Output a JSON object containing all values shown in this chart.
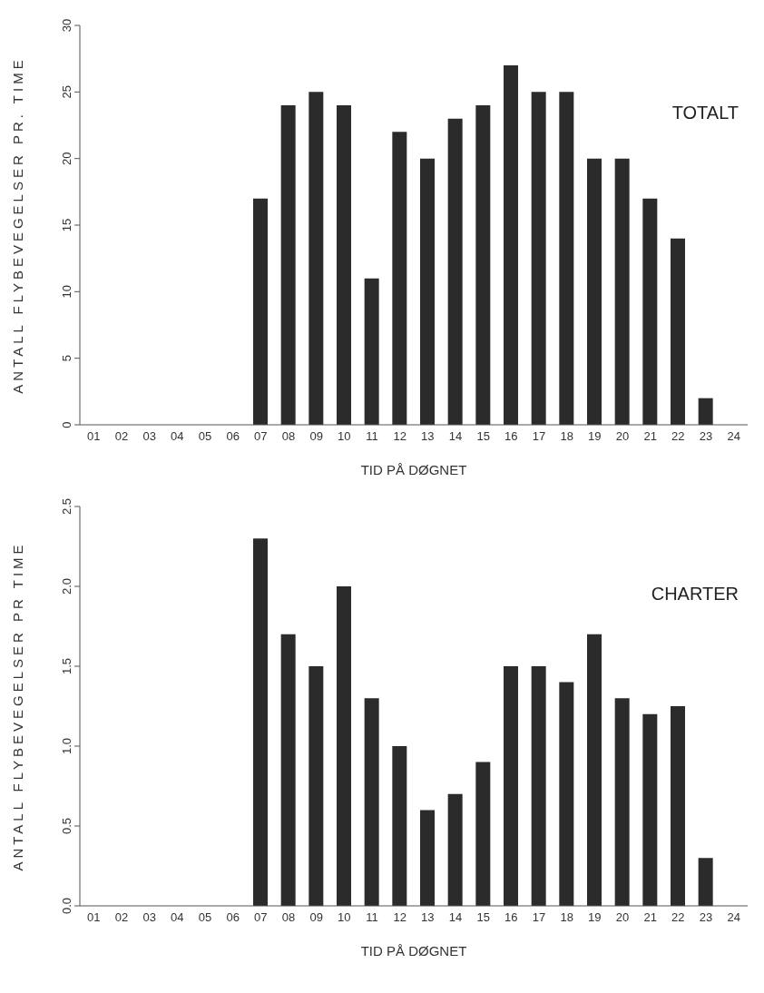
{
  "chart_data": [
    {
      "type": "bar",
      "title": "TOTALT",
      "xlabel": "TID PÅ DØGNET",
      "ylabel": "ANTALL FLYBEVEGELSER PR. TIME",
      "categories": [
        "01",
        "02",
        "03",
        "04",
        "05",
        "06",
        "07",
        "08",
        "09",
        "10",
        "11",
        "12",
        "13",
        "14",
        "15",
        "16",
        "17",
        "18",
        "19",
        "20",
        "21",
        "22",
        "23",
        "24"
      ],
      "values": [
        0,
        0,
        0,
        0,
        0,
        0,
        17,
        24,
        25,
        24,
        11,
        22,
        20,
        23,
        24,
        27,
        25,
        25,
        20,
        20,
        17,
        14,
        2,
        0
      ],
      "color": "#2b2b2b",
      "ylim": [
        0,
        30
      ],
      "yticks": [
        0,
        5,
        10,
        15,
        20,
        25,
        30
      ],
      "grid": false
    },
    {
      "type": "bar",
      "title": "CHARTER",
      "xlabel": "TID PÅ DØGNET",
      "ylabel": "ANTALL FLYBEVEGELSER PR TIME",
      "categories": [
        "01",
        "02",
        "03",
        "04",
        "05",
        "06",
        "07",
        "08",
        "09",
        "10",
        "11",
        "12",
        "13",
        "14",
        "15",
        "16",
        "17",
        "18",
        "19",
        "20",
        "21",
        "22",
        "23",
        "24"
      ],
      "values": [
        0,
        0,
        0,
        0,
        0,
        0,
        2.3,
        1.7,
        1.5,
        2.0,
        1.3,
        1.0,
        0.6,
        0.7,
        0.9,
        1.5,
        1.5,
        1.4,
        1.7,
        1.3,
        1.2,
        1.25,
        0.3,
        0
      ],
      "color": "#2b2b2b",
      "ylim": [
        0,
        2.5
      ],
      "yticks": [
        {
          "value": 0,
          "label": "0.0"
        },
        {
          "value": 0.5,
          "label": "0.5"
        },
        {
          "value": 1,
          "label": "1.0"
        },
        {
          "value": 1.5,
          "label": "1.5"
        },
        {
          "value": 2,
          "label": "2.0"
        },
        {
          "value": 2.5,
          "label": "2.5"
        }
      ],
      "grid": false
    }
  ]
}
